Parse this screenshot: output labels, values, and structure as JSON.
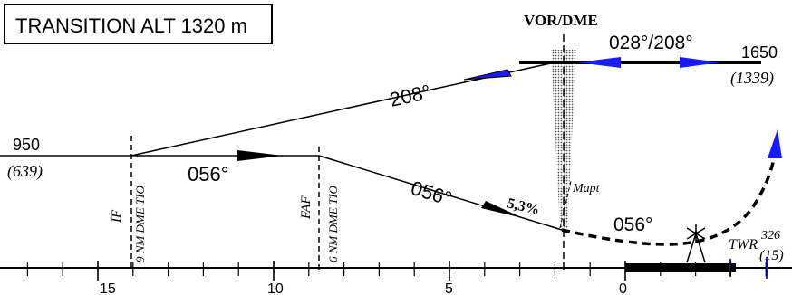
{
  "header": {
    "transition_alt": "TRANSITION ALT 1320 m"
  },
  "fix": {
    "vor_dme": "VOR/DME",
    "if_label": "IF",
    "if_dist": "9 NM DME TIO",
    "faf_label": "FAF",
    "faf_dist": "6 NM DME TIO",
    "mapt_label": "Mapt",
    "twr_label": "TWR"
  },
  "tracks": {
    "outbound": "208°",
    "inbound": "056°",
    "final": "056°",
    "missed": "056°",
    "holding": "028°/208°"
  },
  "gradient": {
    "descent": "5,3%"
  },
  "altitudes": {
    "if_alt": "950",
    "if_height": "(639)",
    "hold_alt": "1650",
    "hold_height": "(1339)",
    "twr_alt": "326",
    "twr_height": "(15)"
  },
  "scale": {
    "labels": [
      "15",
      "10",
      "5",
      "0"
    ]
  },
  "colors": {
    "ink": "#000000",
    "hold_arrow": "#1a1aff",
    "missed_arrow": "#1a1aff",
    "shade": "#bdbdbd"
  }
}
